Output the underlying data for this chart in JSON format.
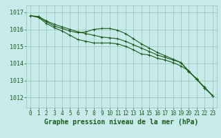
{
  "title": "Graphe pression niveau de la mer (hPa)",
  "background_color": "#c8eaea",
  "grid_color": "#99ccbb",
  "line_color": "#1a5c1a",
  "x_ticks": [
    0,
    1,
    2,
    3,
    4,
    5,
    6,
    7,
    8,
    9,
    10,
    11,
    12,
    13,
    14,
    15,
    16,
    17,
    18,
    19,
    20,
    21,
    22,
    23
  ],
  "y_ticks": [
    1012,
    1013,
    1014,
    1015,
    1016,
    1017
  ],
  "ylim": [
    1011.4,
    1017.4
  ],
  "xlim": [
    -0.5,
    23.5
  ],
  "series": [
    [
      1016.8,
      1016.75,
      1016.5,
      1016.3,
      1016.15,
      1016.0,
      1015.85,
      1015.75,
      1015.65,
      1015.55,
      1015.5,
      1015.45,
      1015.3,
      1015.1,
      1014.9,
      1014.7,
      1014.5,
      1014.35,
      1014.2,
      1014.05,
      1013.5,
      1013.1,
      1012.55,
      1012.1
    ],
    [
      1016.8,
      1016.75,
      1016.45,
      1016.2,
      1016.05,
      1015.9,
      1015.8,
      1015.85,
      1016.0,
      1016.05,
      1016.05,
      1015.95,
      1015.75,
      1015.45,
      1015.15,
      1014.9,
      1014.65,
      1014.45,
      1014.25,
      1014.05,
      1013.55,
      1013.05,
      1012.6,
      1012.1
    ],
    [
      1016.8,
      1016.7,
      1016.35,
      1016.1,
      1015.9,
      1015.65,
      1015.4,
      1015.3,
      1015.2,
      1015.2,
      1015.2,
      1015.15,
      1015.0,
      1014.8,
      1014.55,
      1014.5,
      1014.3,
      1014.2,
      1014.05,
      1013.85,
      1013.55,
      1013.05,
      1012.55,
      1012.1
    ]
  ],
  "title_fontsize": 7,
  "tick_fontsize": 5.5,
  "ytick_fontsize": 6
}
